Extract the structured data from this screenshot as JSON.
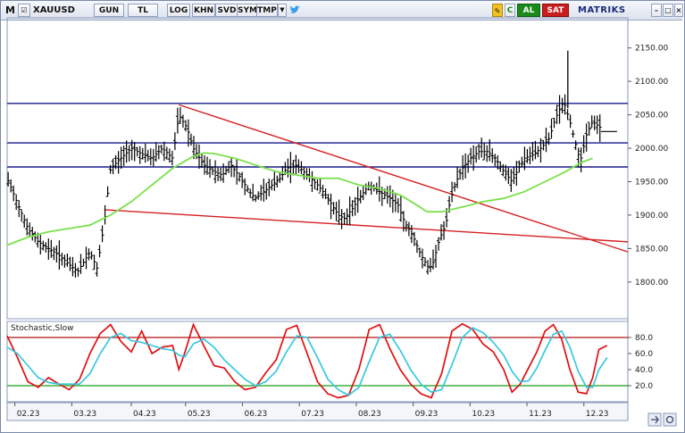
{
  "toolbar": {
    "menu": "M",
    "symbol": "XAUUSD",
    "buttons": [
      "GUN",
      "TL",
      "LOG",
      "KHN",
      "SVD",
      "SYM",
      "TMP"
    ],
    "right_buttons": [
      "AL",
      "SAT"
    ],
    "brand": "MATRIKS",
    "accent_green": "#1a8a1a",
    "accent_red": "#c81e1e"
  },
  "chart_data": [
    {
      "type": "ohlc",
      "symbol": "XAUUSD",
      "x_tick_labels": [
        "02.23",
        "03.23",
        "04.23",
        "05.23",
        "06.23",
        "07.23",
        "08.23",
        "09.23",
        "10.23",
        "11.23",
        "12.23"
      ],
      "y_ticks": [
        1800,
        1850,
        1900,
        1950,
        2000,
        2050,
        2100,
        2150
      ],
      "ylim": [
        1745,
        2195
      ],
      "price_line_color": "#000000",
      "close_path": [
        [
          0,
          1955
        ],
        [
          1,
          1880
        ],
        [
          1.5,
          1860
        ],
        [
          2.5,
          1840
        ],
        [
          3.4,
          1815
        ],
        [
          4,
          1845
        ],
        [
          4.35,
          1820
        ],
        [
          4.7,
          1890
        ],
        [
          5,
          1970
        ],
        [
          5.5,
          1985
        ],
        [
          6,
          2000
        ],
        [
          6.6,
          1990
        ],
        [
          7,
          1985
        ],
        [
          7.5,
          2000
        ],
        [
          8,
          1985
        ],
        [
          8.3,
          2050
        ],
        [
          8.7,
          2030
        ],
        [
          9,
          2000
        ],
        [
          9.5,
          1975
        ],
        [
          10,
          1965
        ],
        [
          10.4,
          1960
        ],
        [
          10.8,
          1975
        ],
        [
          11.3,
          1955
        ],
        [
          11.7,
          1935
        ],
        [
          12,
          1925
        ],
        [
          12.4,
          1935
        ],
        [
          12.8,
          1945
        ],
        [
          13.2,
          1955
        ],
        [
          13.5,
          1970
        ],
        [
          14,
          1975
        ],
        [
          14.5,
          1960
        ],
        [
          15,
          1945
        ],
        [
          15.4,
          1930
        ],
        [
          15.7,
          1915
        ],
        [
          16,
          1900
        ],
        [
          16.3,
          1895
        ],
        [
          16.7,
          1910
        ],
        [
          17,
          1925
        ],
        [
          17.5,
          1945
        ],
        [
          18,
          1935
        ],
        [
          18.5,
          1925
        ],
        [
          18.9,
          1915
        ],
        [
          19.2,
          1890
        ],
        [
          19.6,
          1870
        ],
        [
          20,
          1840
        ],
        [
          20.4,
          1820
        ],
        [
          20.6,
          1830
        ],
        [
          20.9,
          1865
        ],
        [
          21.2,
          1885
        ],
        [
          21.4,
          1920
        ],
        [
          21.7,
          1950
        ],
        [
          22,
          1970
        ],
        [
          22.4,
          1985
        ],
        [
          22.8,
          1995
        ],
        [
          23.2,
          1995
        ],
        [
          23.6,
          1985
        ],
        [
          24,
          1965
        ],
        [
          24.4,
          1950
        ],
        [
          24.8,
          1975
        ],
        [
          25,
          1985
        ],
        [
          25.4,
          1990
        ],
        [
          25.8,
          2000
        ],
        [
          26.2,
          2015
        ],
        [
          26.5,
          2045
        ],
        [
          26.9,
          2070
        ],
        [
          27.2,
          2040
        ],
        [
          27.4,
          2015
        ],
        [
          27.7,
          1980
        ],
        [
          28,
          2020
        ],
        [
          28.3,
          2040
        ],
        [
          28.7,
          2030
        ]
      ],
      "high_spike": {
        "x": 27.1,
        "y": 2146
      },
      "moving_average": [
        [
          0,
          1855
        ],
        [
          1,
          1867
        ],
        [
          2,
          1875
        ],
        [
          3,
          1880
        ],
        [
          4,
          1885
        ],
        [
          5,
          1900
        ],
        [
          6,
          1920
        ],
        [
          7,
          1945
        ],
        [
          8,
          1970
        ],
        [
          9,
          1988
        ],
        [
          9.5,
          1993
        ],
        [
          10,
          1992
        ],
        [
          11,
          1985
        ],
        [
          12,
          1975
        ],
        [
          13,
          1965
        ],
        [
          14,
          1960
        ],
        [
          15,
          1955
        ],
        [
          16,
          1955
        ],
        [
          17,
          1945
        ],
        [
          18,
          1940
        ],
        [
          19,
          1930
        ],
        [
          19.8,
          1915
        ],
        [
          20.3,
          1905
        ],
        [
          21,
          1905
        ],
        [
          22,
          1912
        ],
        [
          23,
          1920
        ],
        [
          24,
          1925
        ],
        [
          25,
          1935
        ],
        [
          26,
          1950
        ],
        [
          27,
          1965
        ],
        [
          27.7,
          1978
        ],
        [
          28.3,
          1985
        ]
      ],
      "moving_average_color": "#7ae04a",
      "horizontal_lines": [
        2067,
        2008,
        1972
      ],
      "horizontal_line_color": "#1a1a8c",
      "trend_lines": [
        {
          "from": [
            8.3,
            2065
          ],
          "to": [
            30,
            1845
          ],
          "color": "#d62020"
        },
        {
          "from": [
            4.7,
            1908
          ],
          "to": [
            30,
            1860
          ],
          "color": "#d62020"
        }
      ],
      "last_price": 2025
    },
    {
      "type": "line",
      "title": "Stochastic,Slow",
      "y_ticks": [
        20,
        40,
        60,
        80
      ],
      "ylim": [
        0,
        100
      ],
      "levels": [
        {
          "value": 80,
          "color": "#b01010"
        },
        {
          "value": 20,
          "color": "#18a018"
        }
      ],
      "series": [
        {
          "color": "#e01010",
          "values": [
            [
              0,
              82
            ],
            [
              0.5,
              55
            ],
            [
              1,
              25
            ],
            [
              1.5,
              18
            ],
            [
              2,
              30
            ],
            [
              2.5,
              22
            ],
            [
              3,
              15
            ],
            [
              3.5,
              28
            ],
            [
              4,
              60
            ],
            [
              4.5,
              85
            ],
            [
              5,
              96
            ],
            [
              5.5,
              75
            ],
            [
              6,
              62
            ],
            [
              6.5,
              88
            ],
            [
              7,
              60
            ],
            [
              7.5,
              68
            ],
            [
              8,
              70
            ],
            [
              8.3,
              40
            ],
            [
              8.6,
              62
            ],
            [
              9,
              96
            ],
            [
              9.5,
              70
            ],
            [
              10,
              45
            ],
            [
              10.5,
              42
            ],
            [
              11,
              25
            ],
            [
              11.5,
              15
            ],
            [
              12,
              18
            ],
            [
              12.5,
              36
            ],
            [
              13,
              52
            ],
            [
              13.5,
              90
            ],
            [
              14,
              95
            ],
            [
              14.5,
              60
            ],
            [
              15,
              25
            ],
            [
              15.5,
              10
            ],
            [
              16,
              5
            ],
            [
              16.5,
              8
            ],
            [
              17,
              40
            ],
            [
              17.5,
              90
            ],
            [
              18,
              96
            ],
            [
              18.5,
              66
            ],
            [
              19,
              40
            ],
            [
              19.5,
              22
            ],
            [
              20,
              10
            ],
            [
              20.5,
              5
            ],
            [
              21,
              35
            ],
            [
              21.5,
              88
            ],
            [
              22,
              97
            ],
            [
              22.5,
              90
            ],
            [
              23,
              72
            ],
            [
              23.5,
              62
            ],
            [
              24,
              40
            ],
            [
              24.4,
              12
            ],
            [
              24.8,
              22
            ],
            [
              25.2,
              42
            ],
            [
              25.6,
              62
            ],
            [
              26,
              88
            ],
            [
              26.4,
              96
            ],
            [
              26.8,
              78
            ],
            [
              27.2,
              40
            ],
            [
              27.6,
              12
            ],
            [
              28,
              10
            ],
            [
              28.3,
              30
            ],
            [
              28.6,
              65
            ],
            [
              29,
              70
            ]
          ]
        },
        {
          "color": "#38c8e0",
          "values": [
            [
              0,
              68
            ],
            [
              0.5,
              60
            ],
            [
              1,
              45
            ],
            [
              1.5,
              30
            ],
            [
              2,
              24
            ],
            [
              2.5,
              22
            ],
            [
              3,
              22
            ],
            [
              3.5,
              22
            ],
            [
              4,
              35
            ],
            [
              4.5,
              60
            ],
            [
              5,
              80
            ],
            [
              5.5,
              85
            ],
            [
              6,
              76
            ],
            [
              6.5,
              74
            ],
            [
              7,
              70
            ],
            [
              7.5,
              66
            ],
            [
              8,
              64
            ],
            [
              8.3,
              58
            ],
            [
              8.6,
              56
            ],
            [
              9,
              72
            ],
            [
              9.5,
              78
            ],
            [
              10,
              68
            ],
            [
              10.5,
              52
            ],
            [
              11,
              40
            ],
            [
              11.5,
              28
            ],
            [
              12,
              20
            ],
            [
              12.5,
              25
            ],
            [
              13,
              38
            ],
            [
              13.5,
              62
            ],
            [
              14,
              82
            ],
            [
              14.5,
              80
            ],
            [
              15,
              55
            ],
            [
              15.5,
              28
            ],
            [
              16,
              15
            ],
            [
              16.5,
              8
            ],
            [
              17,
              18
            ],
            [
              17.5,
              50
            ],
            [
              18,
              80
            ],
            [
              18.5,
              84
            ],
            [
              19,
              64
            ],
            [
              19.5,
              40
            ],
            [
              20,
              22
            ],
            [
              20.5,
              12
            ],
            [
              21,
              15
            ],
            [
              21.5,
              46
            ],
            [
              22,
              80
            ],
            [
              22.5,
              92
            ],
            [
              23,
              86
            ],
            [
              23.5,
              74
            ],
            [
              24,
              58
            ],
            [
              24.4,
              38
            ],
            [
              24.8,
              25
            ],
            [
              25.2,
              26
            ],
            [
              25.6,
              42
            ],
            [
              26,
              64
            ],
            [
              26.4,
              84
            ],
            [
              26.8,
              88
            ],
            [
              27.2,
              68
            ],
            [
              27.6,
              38
            ],
            [
              28,
              18
            ],
            [
              28.3,
              18
            ],
            [
              28.6,
              40
            ],
            [
              29,
              55
            ]
          ]
        }
      ]
    }
  ]
}
